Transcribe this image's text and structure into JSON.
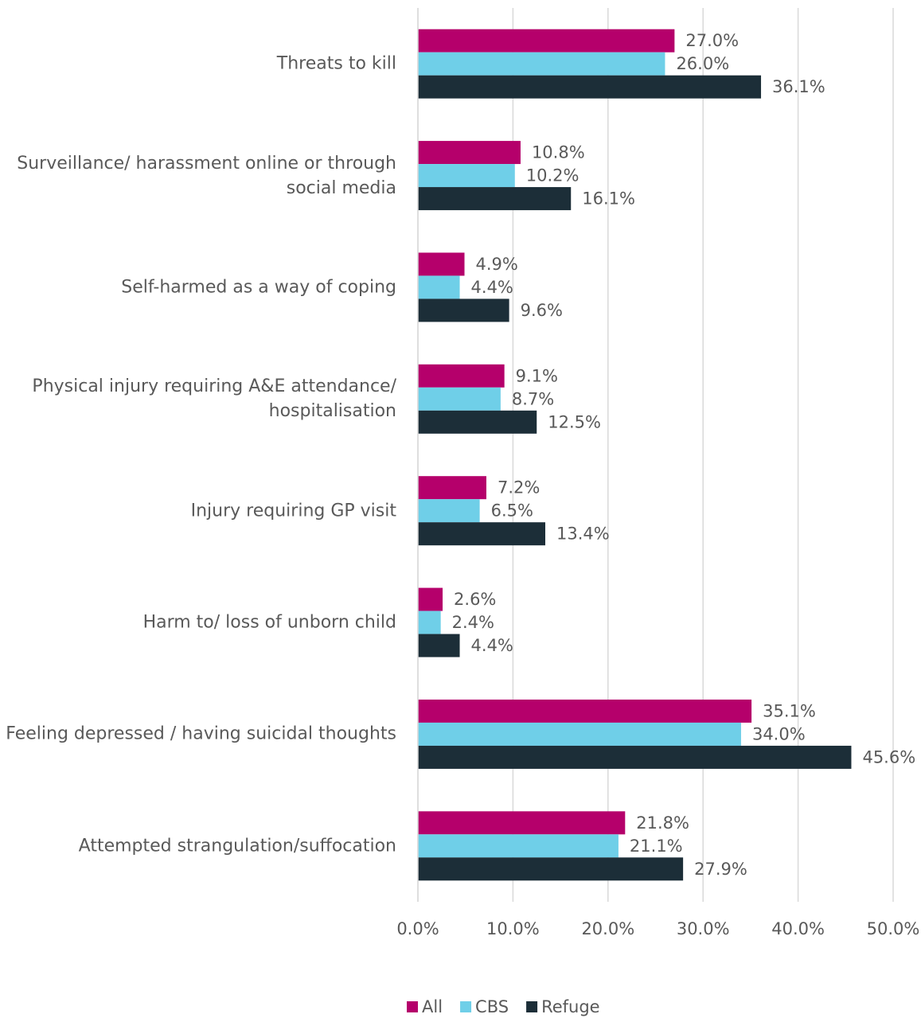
{
  "chart_data": {
    "type": "bar",
    "orientation": "horizontal",
    "categories": [
      "Threats to kill",
      "Surveillance/ harassment online or through social media",
      "Self-harmed as a way of coping",
      "Physical injury requiring A&E attendance/ hospitalisation",
      "Injury requiring GP visit",
      "Harm to/ loss of unborn child",
      "Feeling depressed / having suicidal thoughts",
      "Attempted strangulation/suffocation"
    ],
    "series": [
      {
        "name": "All",
        "color": "#b5006b",
        "values": [
          27.0,
          10.8,
          4.9,
          9.1,
          7.2,
          2.6,
          35.1,
          21.8
        ],
        "value_labels": [
          "27.0%",
          "10.8%",
          "4.9%",
          "9.1%",
          "7.2%",
          "2.6%",
          "35.1%",
          "21.8%"
        ]
      },
      {
        "name": "CBS",
        "color": "#6fcfe8",
        "values": [
          26.0,
          10.2,
          4.4,
          8.7,
          6.5,
          2.4,
          34.0,
          21.1
        ],
        "value_labels": [
          "26.0%",
          "10.2%",
          "4.4%",
          "8.7%",
          "6.5%",
          "2.4%",
          "34.0%",
          "21.1%"
        ]
      },
      {
        "name": "Refuge",
        "color": "#1c2e38",
        "values": [
          36.1,
          16.1,
          9.6,
          12.5,
          13.4,
          4.4,
          45.6,
          27.9
        ],
        "value_labels": [
          "36.1%",
          "16.1%",
          "9.6%",
          "12.5%",
          "13.4%",
          "4.4%",
          "45.6%",
          "27.9%"
        ]
      }
    ],
    "xlim": [
      0,
      50
    ],
    "xticks": [
      {
        "value": 0,
        "label": "0.0%"
      },
      {
        "value": 10,
        "label": "10.0%"
      },
      {
        "value": 20,
        "label": "20.0%"
      },
      {
        "value": 30,
        "label": "30.0%"
      },
      {
        "value": 40,
        "label": "40.0%"
      },
      {
        "value": 50,
        "label": "50.0%"
      }
    ],
    "grid": true,
    "legend": "bottom"
  }
}
